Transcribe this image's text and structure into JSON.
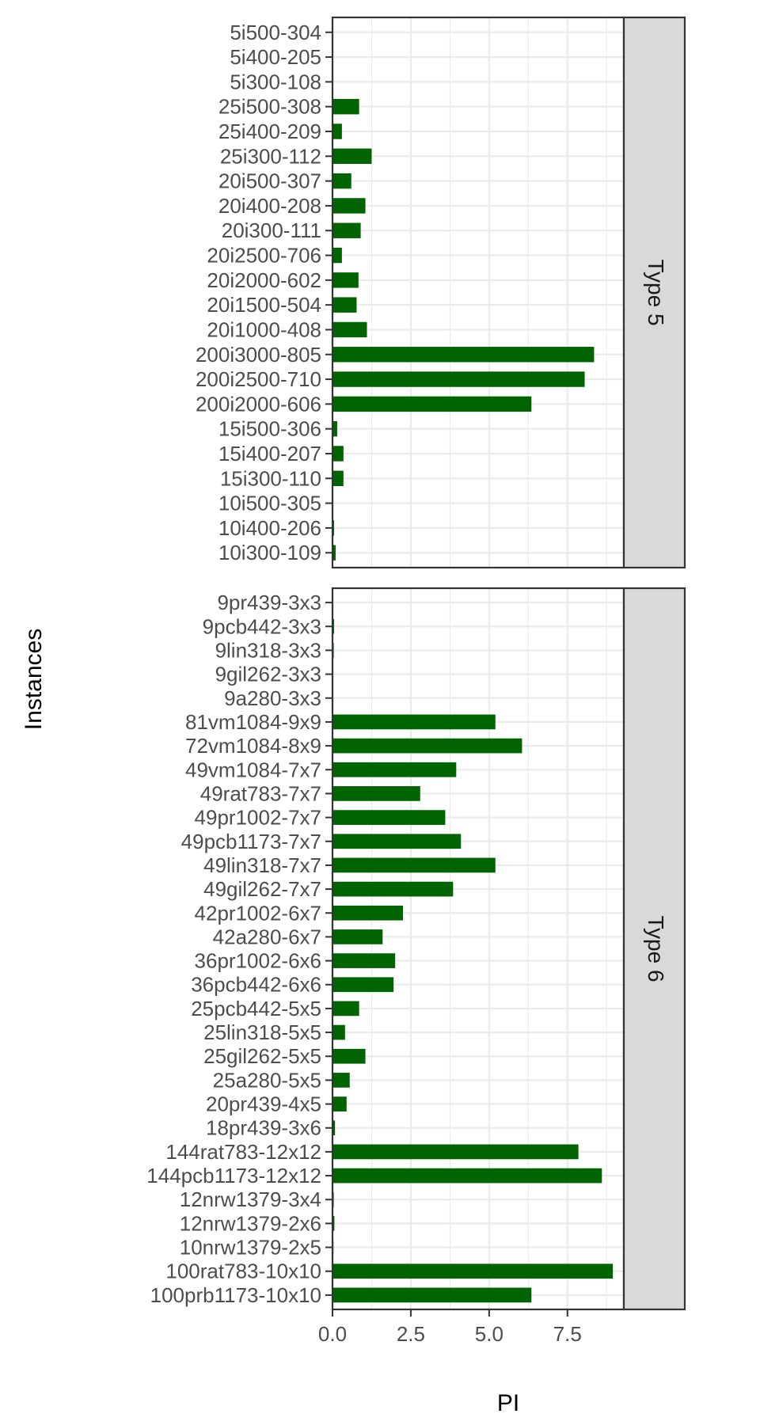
{
  "chart_data": {
    "type": "bar",
    "orientation": "horizontal",
    "xlabel": "PI",
    "ylabel": "Instances",
    "xlim": [
      0,
      9.3
    ],
    "xticks": [
      0.0,
      2.5,
      5.0,
      7.5
    ],
    "xtick_labels": [
      "0.0",
      "2.5",
      "5.0",
      "7.5"
    ],
    "grid": true,
    "bar_color": "#006400",
    "strip_fill": "#d9d9d9",
    "facets": [
      {
        "strip_label": "Type 5",
        "categories": [
          "5i500-304",
          "5i400-205",
          "5i300-108",
          "25i500-308",
          "25i400-209",
          "25i300-112",
          "20i500-307",
          "20i400-208",
          "20i300-111",
          "20i2500-706",
          "20i2000-602",
          "20i1500-504",
          "20i1000-408",
          "200i3000-805",
          "200i2500-710",
          "200i2000-606",
          "15i500-306",
          "15i400-207",
          "15i300-110",
          "10i500-305",
          "10i400-206",
          "10i300-109"
        ],
        "values": [
          0,
          0,
          0,
          0.85,
          0.3,
          1.25,
          0.6,
          1.05,
          0.9,
          0.3,
          0.83,
          0.77,
          1.1,
          8.35,
          8.05,
          6.35,
          0.15,
          0.35,
          0.35,
          0,
          0.05,
          0.1
        ]
      },
      {
        "strip_label": "Type 6",
        "categories": [
          "9pr439-3x3",
          "9pcb442-3x3",
          "9lin318-3x3",
          "9gil262-3x3",
          "9a280-3x3",
          "81vm1084-9x9",
          "72vm1084-8x9",
          "49vm1084-7x7",
          "49rat783-7x7",
          "49pr1002-7x7",
          "49pcb1173-7x7",
          "49lin318-7x7",
          "49gil262-7x7",
          "42pr1002-6x7",
          "42a280-6x7",
          "36pr1002-6x6",
          "36pcb442-6x6",
          "25pcb442-5x5",
          "25lin318-5x5",
          "25gil262-5x5",
          "25a280-5x5",
          "20pr439-4x5",
          "18pr439-3x6",
          "144rat783-12x12",
          "144pcb1173-12x12",
          "12nrw1379-3x4",
          "12nrw1379-2x6",
          "10nrw1379-2x5",
          "100rat783-10x10",
          "100prb1173-10x10"
        ],
        "values": [
          0.02,
          0.05,
          0.04,
          0.02,
          0.02,
          5.2,
          6.05,
          3.95,
          2.8,
          3.6,
          4.1,
          5.2,
          3.85,
          2.25,
          1.6,
          2.0,
          1.95,
          0.85,
          0.4,
          1.05,
          0.55,
          0.45,
          0.08,
          7.85,
          8.6,
          0.04,
          0.06,
          0.03,
          8.95,
          6.35
        ]
      }
    ]
  }
}
